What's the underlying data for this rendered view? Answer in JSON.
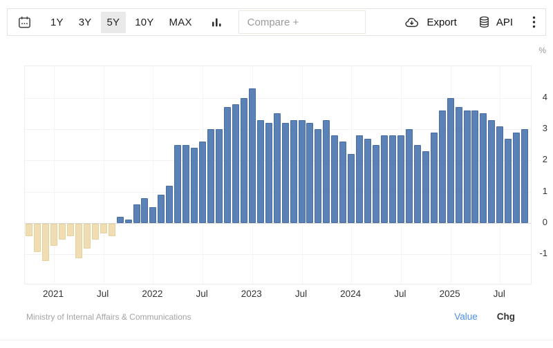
{
  "toolbar": {
    "ranges": [
      {
        "label": "1Y",
        "active": false
      },
      {
        "label": "3Y",
        "active": false
      },
      {
        "label": "5Y",
        "active": true
      },
      {
        "label": "10Y",
        "active": false
      },
      {
        "label": "MAX",
        "active": false
      }
    ],
    "compare_placeholder": "Compare +",
    "export_label": "Export",
    "api_label": "API"
  },
  "chart": {
    "unit_label": "%",
    "source": "Ministry of Internal Affairs & Communications",
    "toggles": [
      {
        "label": "Value",
        "active": true
      },
      {
        "label": "Chg",
        "active": false
      }
    ],
    "colors": {
      "positive_bar": "#5b82b6",
      "positive_bar_border": "#4b6c9e",
      "negative_bar": "#f0ddb2",
      "negative_bar_border": "#e5cf9c",
      "grid": "#f1f1f1",
      "zero_line": "#d9d9d9",
      "plot_border": "#ececec",
      "value_link": "#4a90e2"
    }
  },
  "chart_data": {
    "type": "bar",
    "title": "",
    "xlabel": "",
    "ylabel": "%",
    "ylim": [
      -2,
      5
    ],
    "grid": "on",
    "legend": "off",
    "y_ticks": [
      4,
      3,
      2,
      1,
      0,
      -1
    ],
    "x": [
      "2020-10",
      "2020-11",
      "2020-12",
      "2021-01",
      "2021-02",
      "2021-03",
      "2021-04",
      "2021-05",
      "2021-06",
      "2021-07",
      "2021-08",
      "2021-09",
      "2021-10",
      "2021-11",
      "2021-12",
      "2022-01",
      "2022-02",
      "2022-03",
      "2022-04",
      "2022-05",
      "2022-06",
      "2022-07",
      "2022-08",
      "2022-09",
      "2022-10",
      "2022-11",
      "2022-12",
      "2023-01",
      "2023-02",
      "2023-03",
      "2023-04",
      "2023-05",
      "2023-06",
      "2023-07",
      "2023-08",
      "2023-09",
      "2023-10",
      "2023-11",
      "2023-12",
      "2024-01",
      "2024-02",
      "2024-03",
      "2024-04",
      "2024-05",
      "2024-06",
      "2024-07",
      "2024-08",
      "2024-09",
      "2024-10",
      "2024-11",
      "2024-12",
      "2025-01",
      "2025-02",
      "2025-03",
      "2025-04",
      "2025-05",
      "2025-06",
      "2025-07",
      "2025-08",
      "2025-09",
      "2025-10"
    ],
    "values": [
      -0.4,
      -0.9,
      -1.2,
      -0.7,
      -0.5,
      -0.4,
      -1.1,
      -0.8,
      -0.5,
      -0.3,
      -0.4,
      0.2,
      0.1,
      0.6,
      0.8,
      0.5,
      0.9,
      1.2,
      2.5,
      2.5,
      2.4,
      2.6,
      3.0,
      3.0,
      3.7,
      3.8,
      4.0,
      4.3,
      3.3,
      3.2,
      3.5,
      3.2,
      3.3,
      3.3,
      3.2,
      3.0,
      3.3,
      2.8,
      2.6,
      2.2,
      2.8,
      2.7,
      2.5,
      2.8,
      2.8,
      2.8,
      3.0,
      2.5,
      2.3,
      2.9,
      3.6,
      4.0,
      3.7,
      3.6,
      3.6,
      3.5,
      3.3,
      3.1,
      2.7,
      2.9,
      3.0
    ],
    "x_ticks": [
      {
        "index": 3,
        "label": "2021"
      },
      {
        "index": 9,
        "label": "Jul"
      },
      {
        "index": 15,
        "label": "2022"
      },
      {
        "index": 21,
        "label": "Jul"
      },
      {
        "index": 27,
        "label": "2023"
      },
      {
        "index": 33,
        "label": "Jul"
      },
      {
        "index": 39,
        "label": "2024"
      },
      {
        "index": 45,
        "label": "Jul"
      },
      {
        "index": 51,
        "label": "2025"
      },
      {
        "index": 57,
        "label": "Jul"
      }
    ]
  }
}
